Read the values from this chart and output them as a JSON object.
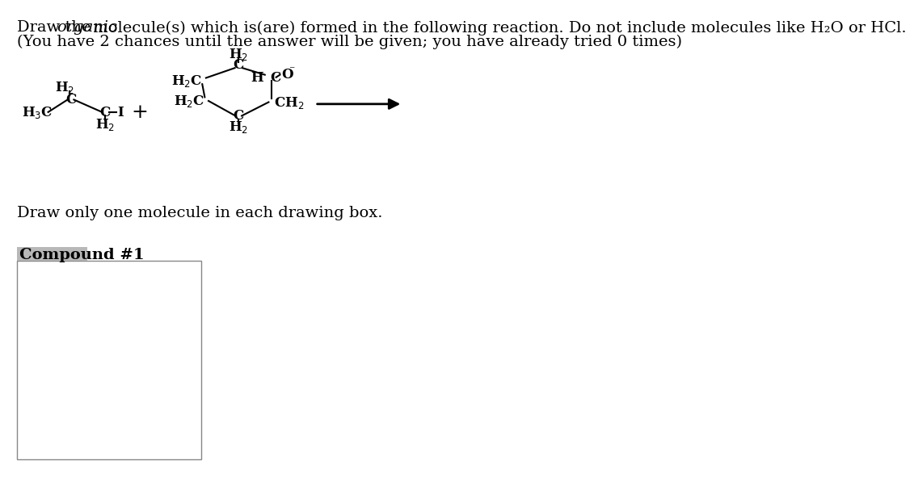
{
  "bg_color": "#ffffff",
  "text_color": "#000000",
  "box_border_color": "#808080",
  "box_bg_color": "#ffffff",
  "compound_label_bg": "#b0b0b0",
  "font_size_title": 14,
  "font_size_mol": 12,
  "font_size_instruction": 14,
  "font_size_compound": 14,
  "title_part1": "Draw the ",
  "title_italic": "organic",
  "title_part2": " molecule(s) which is(are) formed in the following reaction. Do not include molecules like H₂O or HCl.",
  "title_line2": "(You have 2 chances until the answer will be given; you have already tried 0 times)",
  "instruction": "Draw only one molecule in each drawing box.",
  "compound_label": "Compound #1"
}
